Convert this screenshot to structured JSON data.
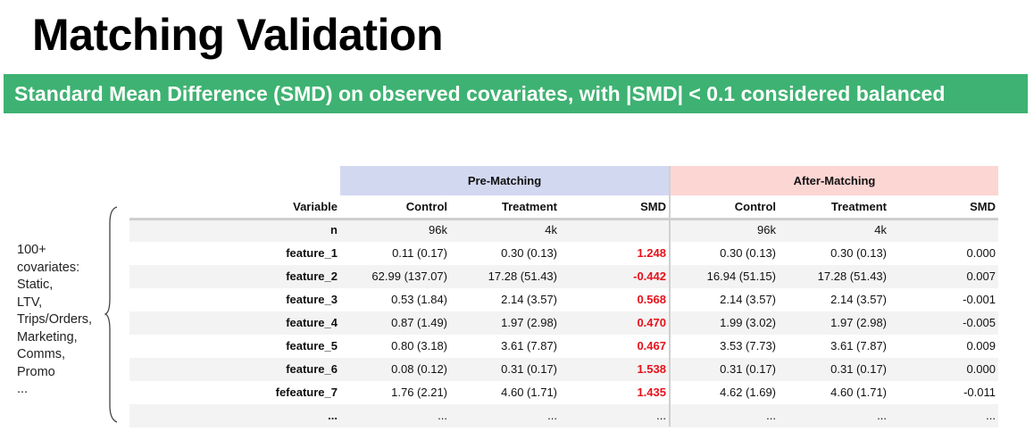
{
  "title": "Matching Validation",
  "banner": "Standard Mean Difference (SMD) on observed covariates, with |SMD| < 0.1 considered balanced",
  "colors": {
    "banner_bg": "#3eb272",
    "pre_header_bg": "#d3d8f1",
    "post_header_bg": "#fcd6d3",
    "highlight_red": "#e8101a",
    "stripe": "#f3f3f3"
  },
  "side_note": [
    "100+",
    "covariates:",
    "Static,",
    "LTV,",
    "Trips/Orders,",
    "Marketing,",
    "Comms,",
    "Promo",
    "..."
  ],
  "table": {
    "group_headers": {
      "pre": "Pre-Matching",
      "post": "After-Matching"
    },
    "columns": [
      "Variable",
      "Control",
      "Treatment",
      "SMD",
      "Control",
      "Treatment",
      "SMD"
    ],
    "rows": [
      {
        "variable": "n",
        "pre_control": "96k",
        "pre_treatment": "4k",
        "pre_smd": "",
        "pre_flag": false,
        "post_control": "96k",
        "post_treatment": "4k",
        "post_smd": ""
      },
      {
        "variable": "feature_1",
        "pre_control": "0.11 (0.17)",
        "pre_treatment": "0.30 (0.13)",
        "pre_smd": "1.248",
        "pre_flag": true,
        "post_control": "0.30 (0.13)",
        "post_treatment": "0.30 (0.13)",
        "post_smd": "0.000"
      },
      {
        "variable": "feature_2",
        "pre_control": "62.99 (137.07)",
        "pre_treatment": "17.28 (51.43)",
        "pre_smd": "-0.442",
        "pre_flag": true,
        "post_control": "16.94 (51.15)",
        "post_treatment": "17.28 (51.43)",
        "post_smd": "0.007"
      },
      {
        "variable": "feature_3",
        "pre_control": "0.53 (1.84)",
        "pre_treatment": "2.14 (3.57)",
        "pre_smd": "0.568",
        "pre_flag": true,
        "post_control": "2.14 (3.57)",
        "post_treatment": "2.14 (3.57)",
        "post_smd": "-0.001"
      },
      {
        "variable": "feature_4",
        "pre_control": "0.87 (1.49)",
        "pre_treatment": "1.97 (2.98)",
        "pre_smd": "0.470",
        "pre_flag": true,
        "post_control": "1.99 (3.02)",
        "post_treatment": "1.97 (2.98)",
        "post_smd": "-0.005"
      },
      {
        "variable": "feature_5",
        "pre_control": "0.80 (3.18)",
        "pre_treatment": "3.61 (7.87)",
        "pre_smd": "0.467",
        "pre_flag": true,
        "post_control": "3.53 (7.73)",
        "post_treatment": "3.61 (7.87)",
        "post_smd": "0.009"
      },
      {
        "variable": "feature_6",
        "pre_control": "0.08 (0.12)",
        "pre_treatment": "0.31 (0.17)",
        "pre_smd": "1.538",
        "pre_flag": true,
        "post_control": "0.31 (0.17)",
        "post_treatment": "0.31 (0.17)",
        "post_smd": "0.000"
      },
      {
        "variable": "fefeature_7",
        "pre_control": "1.76 (2.21)",
        "pre_treatment": "4.60 (1.71)",
        "pre_smd": "1.435",
        "pre_flag": true,
        "post_control": "4.62 (1.69)",
        "post_treatment": "4.60 (1.71)",
        "post_smd": "-0.011"
      },
      {
        "variable": "...",
        "pre_control": "...",
        "pre_treatment": "...",
        "pre_smd": "...",
        "pre_flag": false,
        "post_control": "...",
        "post_treatment": "...",
        "post_smd": "..."
      }
    ]
  }
}
